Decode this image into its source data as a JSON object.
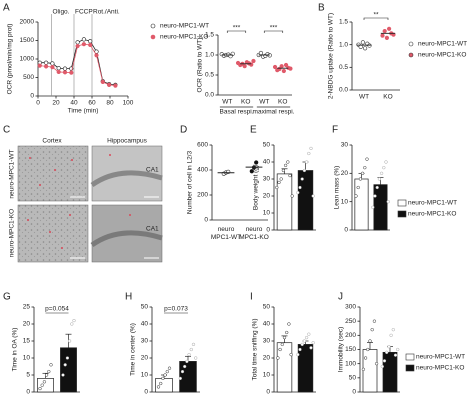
{
  "chart_data": [
    {
      "type": "line",
      "label": "A",
      "ylabel": "OCR (pmol/min/mg prot)",
      "xlabel": "Time (min)",
      "x": [
        2,
        9,
        16,
        23,
        30,
        37,
        44,
        51,
        58,
        65,
        72,
        79,
        86
      ],
      "series": [
        {
          "name": "neuro-MPC1-WT",
          "color": "#222222",
          "values": [
            900,
            900,
            880,
            750,
            740,
            740,
            1450,
            1530,
            1480,
            1200,
            400,
            320,
            300
          ]
        },
        {
          "name": "neuro-MPC1-KO",
          "color": "#e05a6a",
          "values": [
            820,
            800,
            780,
            650,
            640,
            630,
            1350,
            1400,
            1380,
            1100,
            380,
            300,
            280
          ]
        }
      ],
      "annotations": [
        "Oligo.",
        "FCCP",
        "Rot./Anti."
      ],
      "annotation_x": [
        15,
        40,
        60
      ],
      "xlim": [
        0,
        100
      ],
      "xticks": [
        0,
        20,
        40,
        60,
        80,
        100
      ],
      "ylim": [
        0,
        2000
      ],
      "yticks": [
        0,
        500,
        1000,
        1500,
        2000
      ]
    },
    {
      "type": "dot",
      "ylabel": "OCR (Ratio to WT)",
      "categories": [
        "WT",
        "KO",
        "WT",
        "KO"
      ],
      "groups": [
        "Basal respi.",
        "maximal respi."
      ],
      "significance": [
        "***",
        "***"
      ],
      "colors": [
        "#ffffff",
        "#e05a6a",
        "#ffffff",
        "#e05a6a"
      ],
      "values": [
        1.0,
        0.78,
        1.0,
        0.67
      ],
      "points": [
        [
          1.02,
          0.98,
          1.0,
          1.01,
          0.97,
          1.03
        ],
        [
          0.8,
          0.75,
          0.78,
          0.72,
          0.82,
          0.79,
          0.76,
          0.85
        ],
        [
          1.0,
          1.05,
          0.96,
          0.98,
          1.02,
          0.99
        ],
        [
          0.7,
          0.62,
          0.65,
          0.72,
          0.6,
          0.75,
          0.68,
          0.66
        ]
      ],
      "ylim": [
        0,
        1.5
      ],
      "yticks": [
        {
          "value": 0,
          "label": "0.0"
        },
        {
          "value": 0.5,
          "label": "0.5"
        },
        {
          "value": 1,
          "label": "1.0"
        },
        {
          "value": 1.5,
          "label": "1.5"
        }
      ]
    },
    {
      "type": "dot",
      "label": "B",
      "ylabel": "2-NBDG uptake (Ratio to WT)",
      "categories": [
        "WT",
        "KO"
      ],
      "significance": [
        "**"
      ],
      "colors": [
        "#ffffff",
        "#e05a6a"
      ],
      "legend": [
        "neuro-MPC1-WT",
        "neuro-MPC1-KO"
      ],
      "values": [
        0.99,
        1.25
      ],
      "points": [
        [
          1.0,
          0.95,
          1.05,
          0.92,
          1.02,
          0.98
        ],
        [
          1.2,
          1.3,
          1.15,
          1.35,
          1.25,
          1.22
        ]
      ],
      "ylim": [
        0,
        1.5
      ],
      "yticks": [
        {
          "value": 0,
          "label": "0.0"
        },
        {
          "value": 0.5,
          "label": "0.5"
        },
        {
          "value": 1,
          "label": "1.0"
        },
        {
          "value": 1.5,
          "label": "1.5"
        }
      ]
    },
    {
      "type": "dot",
      "label": "D",
      "ylabel": "Number of cell in L2/3",
      "categories": [
        "neuro MPC1-WT",
        "neuro MPC1-KO"
      ],
      "colors": [
        "#ffffff",
        "#111111"
      ],
      "values": [
        378,
        423
      ],
      "errors": [
        8,
        20
      ],
      "points": [
        [
          370,
          380,
          385
        ],
        [
          390,
          420,
          460
        ]
      ],
      "ylim": [
        0,
        600
      ],
      "yticks": [
        0,
        200,
        400,
        600
      ]
    },
    {
      "type": "bar",
      "label": "E",
      "ylabel": "Body weight (g)",
      "colors": [
        "#ffffff",
        "#111111"
      ],
      "values": [
        33,
        35
      ],
      "errors": [
        3,
        5
      ],
      "points": [
        [
          25,
          28,
          30,
          35,
          38,
          40,
          32,
          20
        ],
        [
          22,
          25,
          30,
          35,
          40,
          45,
          48,
          20
        ]
      ],
      "ylim": [
        0,
        50
      ],
      "yticks": [
        0,
        10,
        20,
        30,
        40,
        50
      ]
    },
    {
      "type": "bar",
      "label": "F",
      "ylabel": "Lean mass (%)",
      "colors": [
        "#ffffff",
        "#111111"
      ],
      "legend": [
        "neuro-MPC1-WT",
        "neuro-MPC1-KO"
      ],
      "values": [
        18,
        16
      ],
      "errors": [
        2,
        2.5
      ],
      "points": [
        [
          12,
          15,
          18,
          20,
          22,
          25
        ],
        [
          8,
          12,
          15,
          18,
          20,
          22,
          24,
          10
        ]
      ],
      "ylim": [
        0,
        30
      ],
      "yticks": [
        0,
        10,
        20,
        30
      ]
    },
    {
      "type": "bar",
      "label": "G",
      "ylabel": "Time in OA (%)",
      "annotation": "p=0.054",
      "colors": [
        "#ffffff",
        "#111111"
      ],
      "values": [
        4,
        13
      ],
      "errors": [
        1.5,
        4
      ],
      "points": [
        [
          1,
          2,
          3,
          5,
          6,
          8
        ],
        [
          5,
          8,
          10,
          15,
          20,
          21
        ]
      ],
      "ylim": [
        0,
        25
      ],
      "yticks": [
        0,
        5,
        10,
        15,
        20,
        25
      ]
    },
    {
      "type": "bar",
      "label": "H",
      "ylabel": "Time in center (%)",
      "annotation": "p=0.073",
      "colors": [
        "#ffffff",
        "#111111"
      ],
      "values": [
        8,
        18
      ],
      "errors": [
        2,
        3
      ],
      "points": [
        [
          3,
          5,
          8,
          10,
          12,
          14
        ],
        [
          8,
          12,
          15,
          18,
          22,
          25,
          28,
          20
        ]
      ],
      "ylim": [
        0,
        50
      ],
      "yticks": [
        0,
        10,
        20,
        30,
        40,
        50
      ]
    },
    {
      "type": "bar",
      "label": "I",
      "ylabel": "Total time sniffing (%)",
      "colors": [
        "#ffffff",
        "#111111"
      ],
      "values": [
        29,
        28
      ],
      "errors": [
        4,
        2
      ],
      "points": [
        [
          20,
          25,
          28,
          32,
          35,
          40,
          22
        ],
        [
          22,
          25,
          28,
          30,
          32,
          34,
          26,
          29
        ]
      ],
      "ylim": [
        0,
        50
      ],
      "yticks": [
        0,
        10,
        20,
        30,
        40,
        50
      ]
    },
    {
      "type": "bar",
      "label": "J",
      "ylabel": "Immobility (sec)",
      "colors": [
        "#ffffff",
        "#111111"
      ],
      "legend": [
        "neuro-MPC1-WT",
        "neuro-MPC1-KO"
      ],
      "values": [
        150,
        140
      ],
      "errors": [
        25,
        20
      ],
      "points": [
        [
          80,
          120,
          150,
          180,
          220,
          250,
          100
        ],
        [
          90,
          110,
          140,
          160,
          200,
          220,
          130,
          150
        ]
      ],
      "ylim": [
        0,
        300
      ],
      "yticks": [
        0,
        50,
        100,
        150,
        200,
        250,
        300
      ]
    }
  ],
  "micrographs": {
    "label": "C",
    "columns": [
      "Cortex",
      "Hippocampus"
    ],
    "rows": [
      "neuro-MPC1-WT",
      "neuro-MPC1-KO"
    ],
    "regions": [
      "CA1",
      "CA1"
    ]
  }
}
